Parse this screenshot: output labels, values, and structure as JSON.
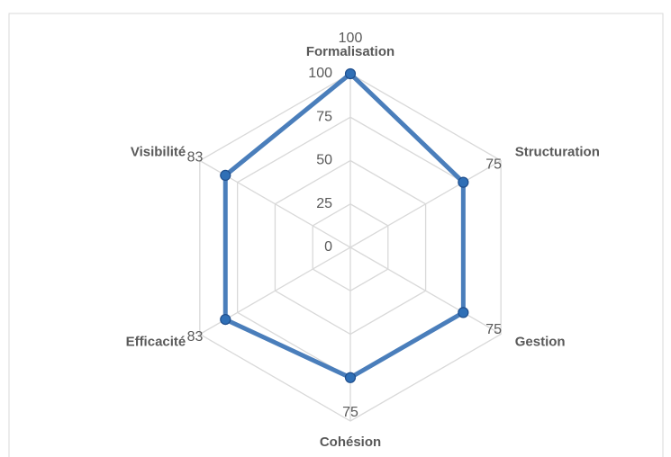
{
  "chart_data": {
    "type": "radar",
    "categories": [
      "Formalisation",
      "Structuration",
      "Gestion",
      "Cohésion",
      "Efficacité",
      "Visibilité"
    ],
    "series": [
      {
        "color": "#4a7ebb",
        "values": [
          100,
          75,
          75,
          75,
          83,
          83
        ]
      }
    ],
    "ylim": [
      0,
      100
    ],
    "yticks": [
      0,
      25,
      50,
      75,
      100
    ],
    "grid": true
  }
}
